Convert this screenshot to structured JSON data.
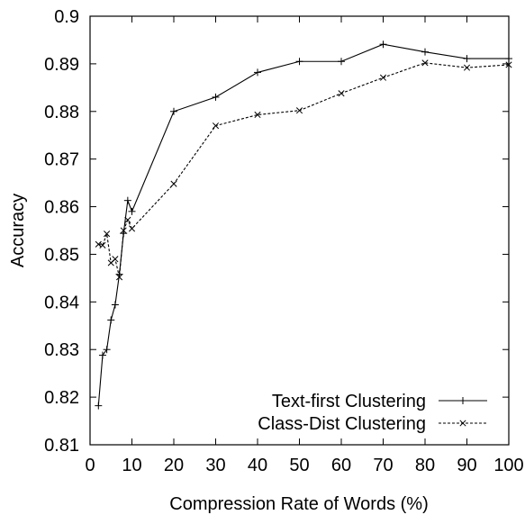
{
  "chart_data": {
    "type": "line",
    "xlabel": "Compression Rate of Words (%)",
    "ylabel": "Accuracy",
    "xlim": [
      0,
      100
    ],
    "ylim": [
      0.81,
      0.9
    ],
    "x_ticks": [
      0,
      10,
      20,
      30,
      40,
      50,
      60,
      70,
      80,
      90,
      100
    ],
    "y_ticks": [
      0.81,
      0.82,
      0.83,
      0.84,
      0.85,
      0.86,
      0.87,
      0.88,
      0.89,
      0.9
    ],
    "x_tick_labels": [
      "0",
      "10",
      "20",
      "30",
      "40",
      "50",
      "60",
      "70",
      "80",
      "90",
      "100"
    ],
    "y_tick_labels": [
      "0.81",
      "0.82",
      "0.83",
      "0.84",
      "0.85",
      "0.86",
      "0.87",
      "0.88",
      "0.89",
      "0.9"
    ],
    "grid": false,
    "legend_position": "bottom-right",
    "series": [
      {
        "name": "Text-first Clustering",
        "line_style": "solid",
        "marker": "plus",
        "color": "#000000",
        "x": [
          2,
          3,
          4,
          5,
          6,
          7,
          8,
          9,
          10,
          20,
          30,
          40,
          50,
          60,
          70,
          80,
          90,
          100
        ],
        "y": [
          0.8182,
          0.8288,
          0.83,
          0.8362,
          0.8394,
          0.8458,
          0.8544,
          0.8613,
          0.859,
          0.88,
          0.883,
          0.8882,
          0.8905,
          0.8905,
          0.8941,
          0.8925,
          0.8911,
          0.8911
        ]
      },
      {
        "name": "Class-Dist Clustering",
        "line_style": "dashed",
        "marker": "x",
        "color": "#000000",
        "x": [
          2,
          3,
          4,
          5,
          6,
          7,
          8,
          9,
          10,
          20,
          30,
          40,
          50,
          60,
          70,
          80,
          90,
          100
        ],
        "y": [
          0.8521,
          0.8519,
          0.8543,
          0.8482,
          0.849,
          0.8452,
          0.855,
          0.8572,
          0.8554,
          0.8648,
          0.877,
          0.8793,
          0.8802,
          0.8838,
          0.8871,
          0.8902,
          0.8892,
          0.8898
        ]
      }
    ]
  }
}
